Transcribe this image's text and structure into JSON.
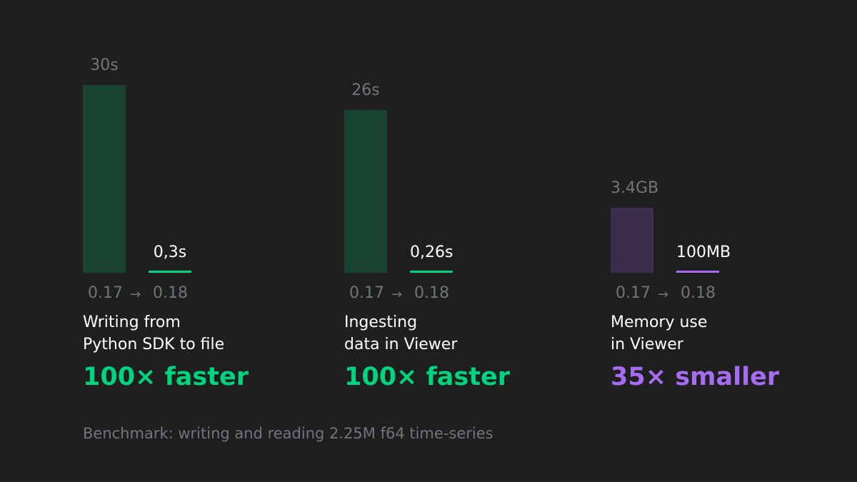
{
  "chart_data": [
    {
      "type": "bar",
      "categories": [
        "0.17",
        "0.18"
      ],
      "values_seconds": [
        30,
        0.3
      ],
      "value_labels": [
        "30s",
        "0,3s"
      ],
      "version_arrow": "→",
      "description": [
        "Writing from",
        "Python SDK to file"
      ],
      "headline": "100× faster",
      "colors": {
        "old_bar": "#1b4331",
        "new_bar": "#00d47f",
        "headline": "#00d47f"
      }
    },
    {
      "type": "bar",
      "categories": [
        "0.17",
        "0.18"
      ],
      "values_seconds": [
        26,
        0.26
      ],
      "value_labels": [
        "26s",
        "0,26s"
      ],
      "version_arrow": "→",
      "description": [
        "Ingesting",
        "data in Viewer"
      ],
      "headline": "100× faster",
      "colors": {
        "old_bar": "#1b4331",
        "new_bar": "#00d47f",
        "headline": "#00d47f"
      }
    },
    {
      "type": "bar",
      "categories": [
        "0.17",
        "0.18"
      ],
      "values_mb": [
        3400,
        100
      ],
      "value_labels": [
        "3.4GB",
        "100MB"
      ],
      "version_arrow": "→",
      "description": [
        "Memory use",
        "in Viewer"
      ],
      "headline": "35× smaller",
      "colors": {
        "old_bar": "#3b2d4c",
        "new_bar": "#a66cf2",
        "headline": "#a66cf2"
      }
    }
  ],
  "footer": "Benchmark: writing and reading 2.25M f64  time-series"
}
